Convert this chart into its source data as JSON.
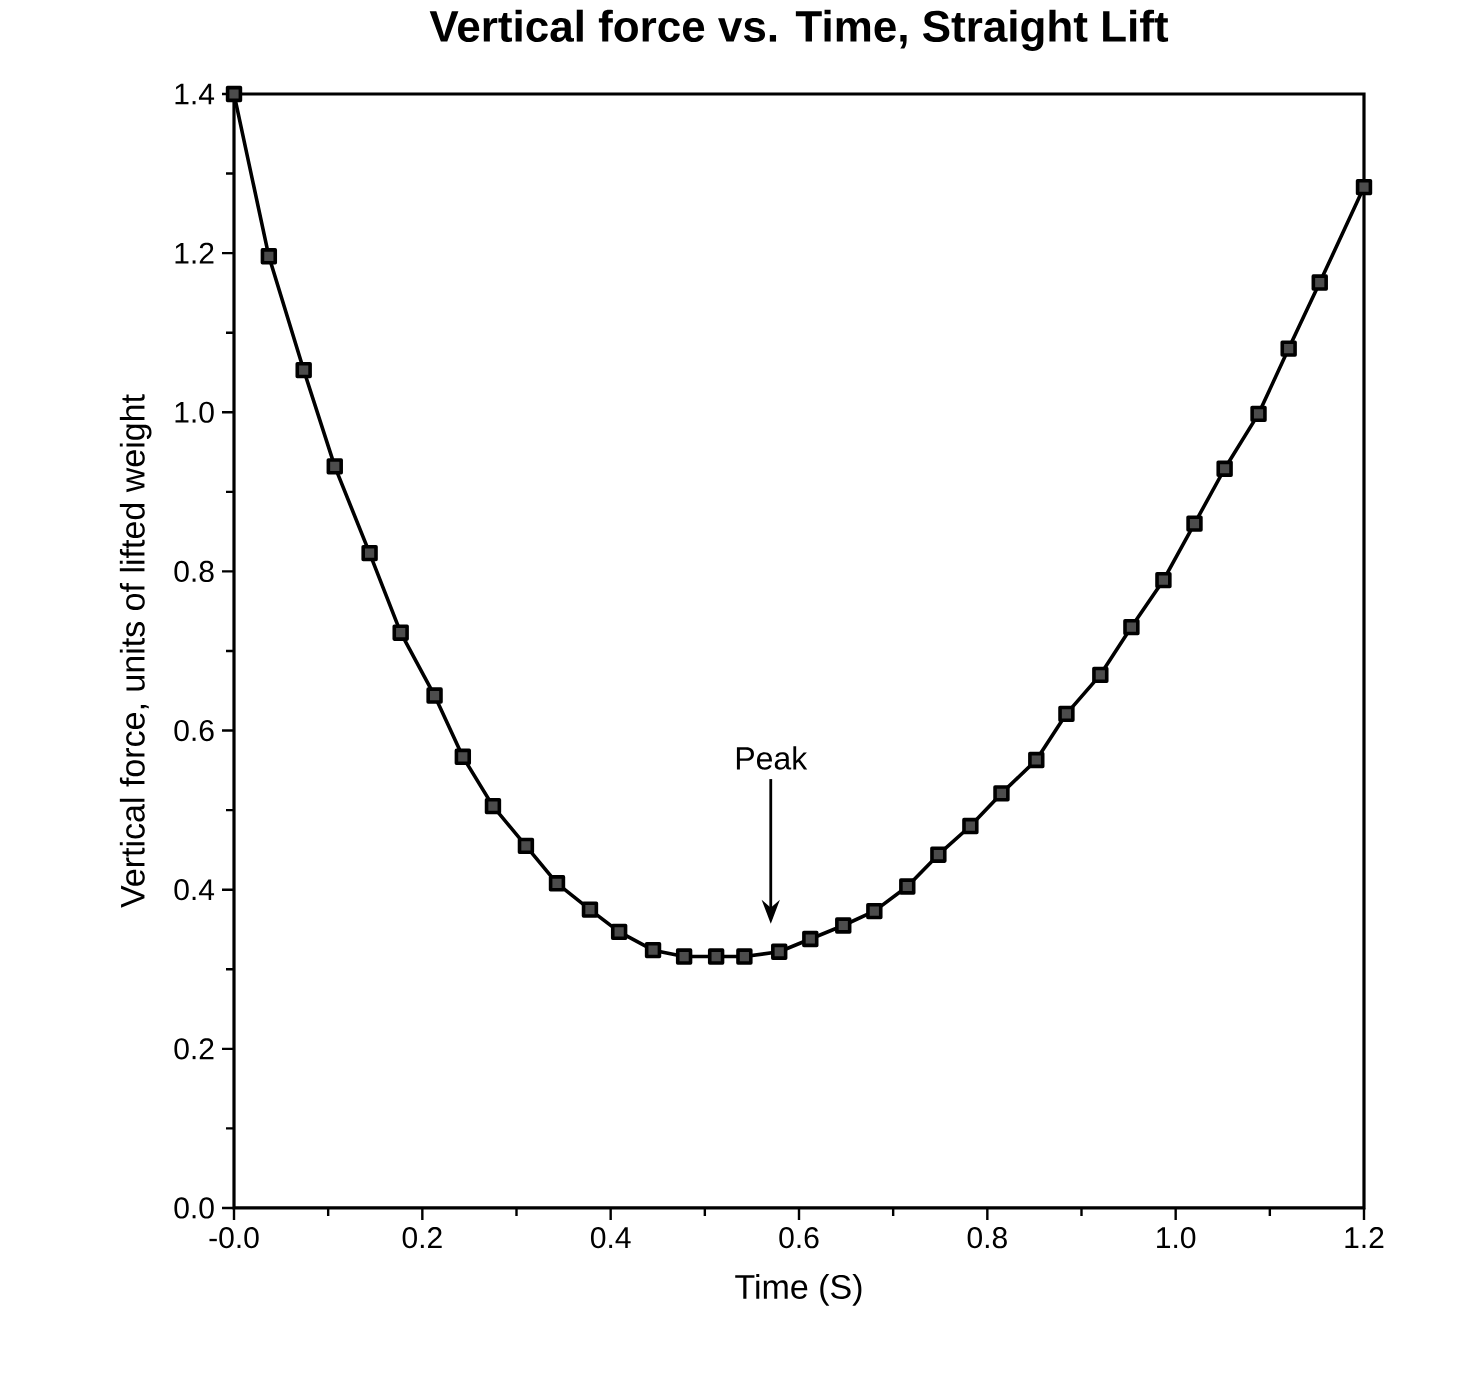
{
  "chart_data": {
    "type": "line",
    "title": "Vertical force vs. Time, Straight Lift",
    "xlabel": "Time  (S)",
    "ylabel": "Vertical force, units of lifted weight",
    "x": [
      0,
      0.037,
      0.074,
      0.107,
      0.144,
      0.177,
      0.213,
      0.243,
      0.275,
      0.31,
      0.343,
      0.378,
      0.409,
      0.445,
      0.478,
      0.512,
      0.542,
      0.579,
      0.612,
      0.647,
      0.68,
      0.715,
      0.748,
      0.782,
      0.815,
      0.852,
      0.884,
      0.92,
      0.953,
      0.987,
      1.02,
      1.052,
      1.088,
      1.12,
      1.153,
      1.2
    ],
    "series": [
      {
        "color": "#000000",
        "values": [
          1.4,
          1.196,
          1.053,
          0.932,
          0.823,
          0.723,
          0.644,
          0.567,
          0.505,
          0.455,
          0.408,
          0.375,
          0.347,
          0.324,
          0.316,
          0.316,
          0.316,
          0.322,
          0.338,
          0.355,
          0.373,
          0.404,
          0.444,
          0.48,
          0.521,
          0.563,
          0.621,
          0.67,
          0.73,
          0.789,
          0.86,
          0.929,
          0.998,
          1.08,
          1.163,
          1.283
        ]
      }
    ],
    "marker": "square",
    "line_style": "solid",
    "grid": false,
    "xlim": [
      0,
      1.2
    ],
    "ylim": [
      0,
      1.4
    ],
    "xticks": [
      {
        "value": 0,
        "label": "-0.0"
      },
      {
        "value": 0.2,
        "label": "0.2"
      },
      {
        "value": 0.4,
        "label": "0.4"
      },
      {
        "value": 0.6,
        "label": "0.6"
      },
      {
        "value": 0.8,
        "label": "0.8"
      },
      {
        "value": 1.0,
        "label": "1.0"
      },
      {
        "value": 1.2,
        "label": "1.2"
      }
    ],
    "yticks": [
      {
        "value": 0,
        "label": "0.0"
      },
      {
        "value": 0.2,
        "label": "0.2"
      },
      {
        "value": 0.4,
        "label": "0.4"
      },
      {
        "value": 0.6,
        "label": "0.6"
      },
      {
        "value": 0.8,
        "label": "0.8"
      },
      {
        "value": 1.0,
        "label": "1.0"
      },
      {
        "value": 1.2,
        "label": "1.2"
      },
      {
        "value": 1.4,
        "label": "1.4"
      }
    ],
    "annotations": [
      "Peak"
    ]
  }
}
